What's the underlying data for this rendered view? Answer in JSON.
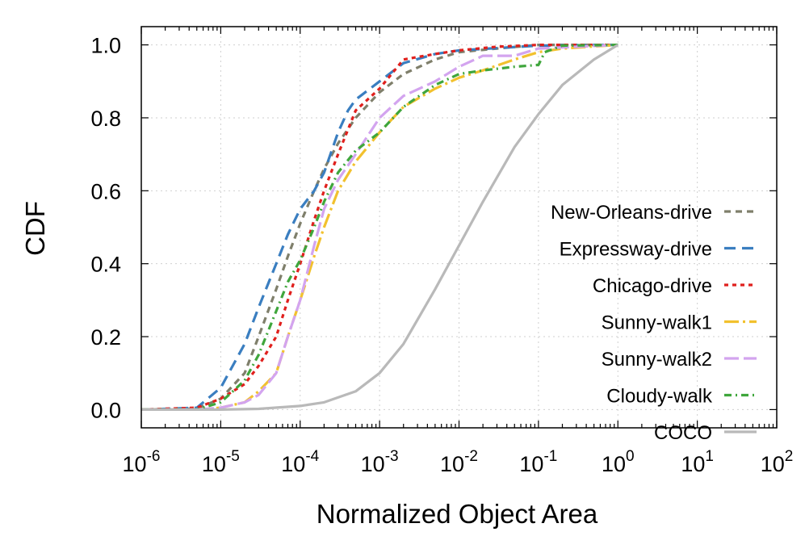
{
  "chart_data": {
    "type": "line",
    "title": "",
    "xlabel": "Normalized Object Area",
    "ylabel": "CDF",
    "x_scale": "log",
    "xlim": [
      1e-06,
      100
    ],
    "ylim": [
      -0.05,
      1.05
    ],
    "x_ticks": [
      {
        "base": "10",
        "exp": "-6"
      },
      {
        "base": "10",
        "exp": "-5"
      },
      {
        "base": "10",
        "exp": "-4"
      },
      {
        "base": "10",
        "exp": "-3"
      },
      {
        "base": "10",
        "exp": "-2"
      },
      {
        "base": "10",
        "exp": "-1"
      },
      {
        "base": "10",
        "exp": "0"
      },
      {
        "base": "10",
        "exp": "1"
      },
      {
        "base": "10",
        "exp": "2"
      }
    ],
    "y_ticks": [
      "0.0",
      "0.2",
      "0.4",
      "0.6",
      "0.8",
      "1.0"
    ],
    "grid": true,
    "legend_position": "right",
    "series": [
      {
        "name": "New-Orleans-drive",
        "color": "#7f7f6b",
        "dash": "8,6",
        "x": [
          1e-06,
          5e-06,
          1e-05,
          2e-05,
          3e-05,
          5e-05,
          7e-05,
          0.0001,
          0.00015,
          0.0002,
          0.0003,
          0.0005,
          0.001,
          0.002,
          0.005,
          0.01,
          0.03,
          0.1,
          1
        ],
        "y": [
          0.0,
          0.003,
          0.03,
          0.1,
          0.2,
          0.33,
          0.42,
          0.51,
          0.6,
          0.66,
          0.73,
          0.8,
          0.87,
          0.92,
          0.96,
          0.98,
          0.99,
          1.0,
          1.0
        ]
      },
      {
        "name": "Expressway-drive",
        "color": "#3a7ec0",
        "dash": "14,8",
        "x": [
          1e-06,
          5e-06,
          1e-05,
          2e-05,
          3e-05,
          5e-05,
          7e-05,
          0.0001,
          0.00015,
          0.0002,
          0.0003,
          0.0004,
          0.0005,
          0.001,
          0.002,
          0.005,
          0.01,
          0.1,
          1
        ],
        "y": [
          0.0,
          0.005,
          0.06,
          0.18,
          0.28,
          0.4,
          0.48,
          0.55,
          0.6,
          0.65,
          0.76,
          0.82,
          0.85,
          0.9,
          0.95,
          0.975,
          0.985,
          0.998,
          1.0
        ]
      },
      {
        "name": "Chicago-drive",
        "color": "#e0201d",
        "dash": "5,5",
        "x": [
          1e-06,
          5e-06,
          1e-05,
          2e-05,
          3e-05,
          5e-05,
          7e-05,
          0.0001,
          0.00015,
          0.0002,
          0.0003,
          0.0005,
          0.001,
          0.002,
          0.005,
          0.01,
          0.03,
          0.1,
          1
        ],
        "y": [
          0.0,
          0.005,
          0.03,
          0.07,
          0.12,
          0.2,
          0.3,
          0.4,
          0.52,
          0.6,
          0.7,
          0.82,
          0.88,
          0.96,
          0.975,
          0.985,
          0.995,
          1.0,
          1.0
        ]
      },
      {
        "name": "Sunny-walk1",
        "color": "#f2c12e",
        "dash": "18,5,3,5",
        "x": [
          1e-06,
          5e-06,
          1e-05,
          2e-05,
          3e-05,
          5e-05,
          7e-05,
          0.0001,
          0.00015,
          0.0002,
          0.0003,
          0.0005,
          0.001,
          0.002,
          0.005,
          0.01,
          0.02,
          0.05,
          0.1,
          0.2,
          1
        ],
        "y": [
          0.0,
          0.0,
          0.005,
          0.02,
          0.05,
          0.1,
          0.2,
          0.3,
          0.42,
          0.5,
          0.6,
          0.68,
          0.76,
          0.83,
          0.88,
          0.91,
          0.93,
          0.96,
          0.98,
          0.99,
          1.0
        ]
      },
      {
        "name": "Sunny-walk2",
        "color": "#d3a4ef",
        "dash": "18,6",
        "x": [
          1e-06,
          5e-06,
          1e-05,
          2e-05,
          3e-05,
          5e-05,
          7e-05,
          0.0001,
          0.00015,
          0.0002,
          0.0003,
          0.0005,
          0.001,
          0.002,
          0.005,
          0.01,
          0.02,
          0.05,
          0.1,
          1
        ],
        "y": [
          0.0,
          0.0,
          0.005,
          0.02,
          0.04,
          0.1,
          0.2,
          0.3,
          0.45,
          0.55,
          0.63,
          0.7,
          0.8,
          0.86,
          0.9,
          0.94,
          0.97,
          0.97,
          0.99,
          1.0
        ]
      },
      {
        "name": "Cloudy-walk",
        "color": "#3fa63c",
        "dash": "9,5,2,5",
        "x": [
          1e-06,
          5e-06,
          1e-05,
          2e-05,
          3e-05,
          5e-05,
          7e-05,
          0.0001,
          0.00015,
          0.0002,
          0.0003,
          0.0005,
          0.001,
          0.002,
          0.005,
          0.01,
          0.02,
          0.05,
          0.1,
          0.12,
          0.2,
          1
        ],
        "y": [
          0.0,
          0.0,
          0.02,
          0.08,
          0.15,
          0.27,
          0.35,
          0.41,
          0.5,
          0.57,
          0.65,
          0.71,
          0.76,
          0.83,
          0.89,
          0.92,
          0.93,
          0.94,
          0.945,
          0.98,
          0.998,
          1.0
        ]
      },
      {
        "name": "COCO",
        "color": "#b9b9b9",
        "dash": "",
        "x": [
          1e-06,
          1e-05,
          3e-05,
          0.0001,
          0.0002,
          0.0005,
          0.001,
          0.002,
          0.005,
          0.01,
          0.02,
          0.05,
          0.1,
          0.2,
          0.5,
          1
        ],
        "y": [
          0.0,
          0.0,
          0.002,
          0.01,
          0.02,
          0.05,
          0.1,
          0.18,
          0.33,
          0.45,
          0.57,
          0.72,
          0.81,
          0.89,
          0.96,
          1.0
        ]
      }
    ]
  }
}
